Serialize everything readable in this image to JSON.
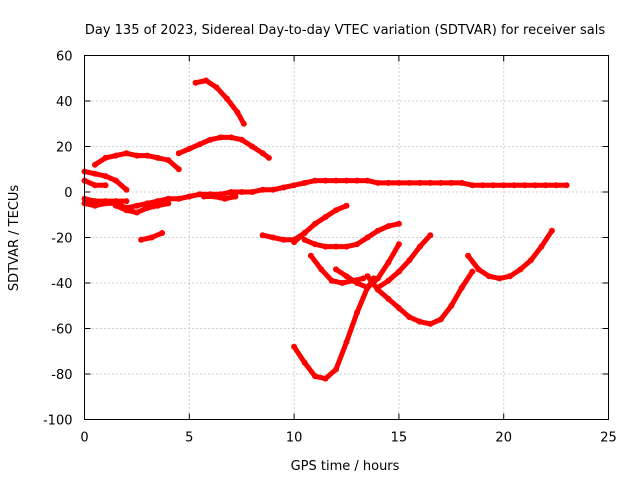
{
  "chart_data": {
    "type": "scatter",
    "title": "Day 135 of 2023, Sidereal Day-to-day VTEC variation (SDTVAR) for receiver sals",
    "xlabel": "GPS time / hours",
    "ylabel": "SDTVAR / TECUs",
    "xlim": [
      0,
      25
    ],
    "ylim": [
      -100,
      60
    ],
    "xticks": [
      0,
      5,
      10,
      15,
      20,
      25
    ],
    "yticks": [
      -100,
      -80,
      -60,
      -40,
      -20,
      0,
      20,
      40,
      60
    ],
    "grid": true,
    "legend": "none",
    "color": "#ff0000",
    "series": [
      {
        "x": [
          0.0,
          0.5,
          1.0,
          1.5,
          2.0,
          2.5,
          3.0,
          3.5,
          4.0,
          4.5,
          5.0,
          5.5,
          6.0,
          6.5,
          7.0,
          7.5,
          8.0,
          8.5,
          9.0,
          9.5,
          10.0,
          10.5,
          11.0,
          11.5,
          12.0,
          12.5,
          13.0,
          13.5,
          14.0,
          14.5,
          15.0,
          15.5,
          16.0,
          16.5,
          17.0,
          17.5,
          18.0,
          18.5,
          19.0,
          19.5,
          20.0,
          20.5,
          21.0,
          21.5,
          22.0,
          22.5,
          23.0
        ],
        "y": [
          -5,
          -6,
          -5,
          -5,
          -7,
          -6,
          -5,
          -4,
          -3,
          -3,
          -2,
          -1,
          -1,
          -1,
          0,
          0,
          0,
          1,
          1,
          2,
          3,
          4,
          5,
          5,
          5,
          5,
          5,
          5,
          4,
          4,
          4,
          4,
          4,
          4,
          4,
          4,
          4,
          3,
          3,
          3,
          3,
          3,
          3,
          3,
          3,
          3,
          3
        ]
      },
      {
        "x": [
          0.0,
          0.5,
          1.0,
          1.5,
          2.0
        ],
        "y": [
          -3,
          -4,
          -4,
          -4,
          -4
        ]
      },
      {
        "x": [
          0.0,
          0.5,
          1.0
        ],
        "y": [
          5,
          3,
          3
        ]
      },
      {
        "x": [
          0.0,
          0.5,
          1.0,
          1.5,
          2.0
        ],
        "y": [
          9,
          8,
          7,
          5,
          1
        ]
      },
      {
        "x": [
          0.5,
          1.0,
          1.5,
          2.0,
          2.5,
          3.0,
          3.5,
          4.0,
          4.5
        ],
        "y": [
          12,
          15,
          16,
          17,
          16,
          16,
          15,
          14,
          10
        ]
      },
      {
        "x": [
          1.5,
          2.0,
          2.5,
          3.0,
          3.5,
          4.0
        ],
        "y": [
          -6,
          -8,
          -9,
          -7,
          -6,
          -5
        ]
      },
      {
        "x": [
          2.7,
          3.2,
          3.7
        ],
        "y": [
          -21,
          -20,
          -18
        ]
      },
      {
        "x": [
          4.5,
          5.0,
          5.5,
          6.0,
          6.5,
          7.0,
          7.5,
          8.0,
          8.5,
          8.8
        ],
        "y": [
          17,
          19,
          21,
          23,
          24,
          24,
          23,
          20,
          17,
          15
        ]
      },
      {
        "x": [
          5.3,
          5.8,
          6.3,
          6.8,
          7.3,
          7.6
        ],
        "y": [
          48,
          49,
          46,
          41,
          35,
          30
        ]
      },
      {
        "x": [
          5.7,
          6.2,
          6.7,
          7.2
        ],
        "y": [
          -2,
          -2,
          -3,
          -2
        ]
      },
      {
        "x": [
          8.5,
          9.0,
          9.5,
          10.0,
          10.5
        ],
        "y": [
          -19,
          -20,
          -21,
          -21,
          -18
        ]
      },
      {
        "x": [
          10.0,
          10.5,
          11.0,
          11.5,
          12.0,
          12.5
        ],
        "y": [
          -22,
          -18,
          -14,
          -11,
          -8,
          -6
        ]
      },
      {
        "x": [
          10.5,
          11.0,
          11.5,
          12.0,
          12.5,
          13.0,
          13.5,
          14.0,
          14.5,
          15.0
        ],
        "y": [
          -21,
          -23,
          -24,
          -24,
          -24,
          -23,
          -20,
          -17,
          -15,
          -14
        ]
      },
      {
        "x": [
          10.0,
          10.5,
          11.0,
          11.5,
          12.0,
          12.5,
          13.0,
          13.5,
          13.8
        ],
        "y": [
          -68,
          -75,
          -81,
          -82,
          -78,
          -66,
          -53,
          -42,
          -38
        ]
      },
      {
        "x": [
          10.8,
          11.3,
          11.8,
          12.3,
          12.8,
          13.3
        ],
        "y": [
          -28,
          -34,
          -39,
          -40,
          -39,
          -38
        ]
      },
      {
        "x": [
          12.0,
          12.5,
          13.0,
          13.5,
          14.0,
          14.5,
          15.0
        ],
        "y": [
          -34,
          -37,
          -40,
          -42,
          -38,
          -31,
          -23
        ]
      },
      {
        "x": [
          13.5,
          14.0,
          14.5,
          15.0,
          15.5,
          16.0,
          16.5,
          17.0,
          17.5,
          18.0,
          18.5
        ],
        "y": [
          -37,
          -43,
          -47,
          -51,
          -55,
          -57,
          -58,
          -56,
          -50,
          -42,
          -35
        ]
      },
      {
        "x": [
          14.0,
          14.5,
          15.0,
          15.5,
          16.0,
          16.5
        ],
        "y": [
          -42,
          -39,
          -35,
          -30,
          -24,
          -19
        ]
      },
      {
        "x": [
          18.3,
          18.8,
          19.3,
          19.8,
          20.3,
          20.8,
          21.3,
          21.8,
          22.3
        ],
        "y": [
          -28,
          -34,
          -37,
          -38,
          -37,
          -34,
          -30,
          -24,
          -17
        ]
      }
    ]
  }
}
